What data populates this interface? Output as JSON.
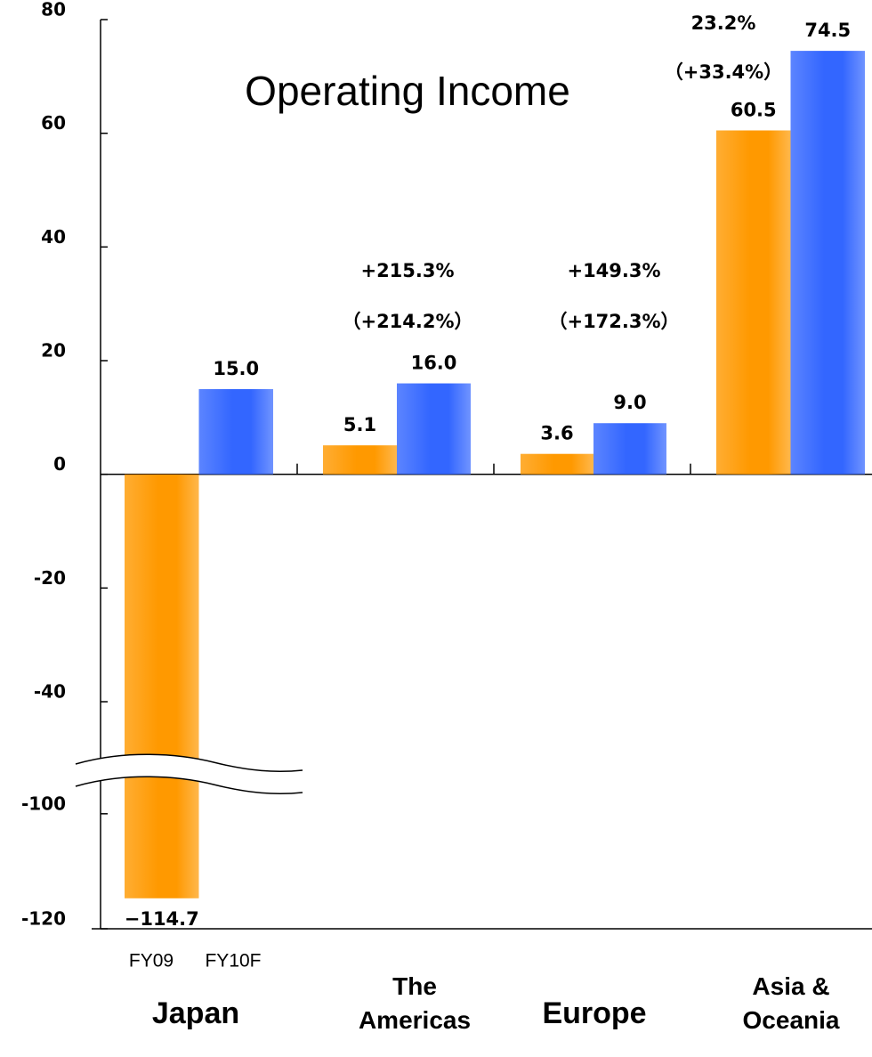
{
  "chart_data": {
    "type": "bar",
    "title": "Operating Income",
    "categories": [
      "Japan",
      "The Americas",
      "Europe",
      "Asia & Oceania"
    ],
    "series": [
      {
        "name": "FY09",
        "color": "#ff9900",
        "values": [
          -114.7,
          5.1,
          3.6,
          60.5
        ],
        "value_labels": [
          "−114.7",
          "5.1",
          "3.6",
          "60.5"
        ]
      },
      {
        "name": "FY10F",
        "color": "#3366ff",
        "values": [
          15.0,
          16.0,
          9.0,
          74.5
        ],
        "value_labels": [
          "15.0",
          "16.0",
          "9.0",
          "74.5"
        ]
      }
    ],
    "growth": [
      null,
      [
        "+215.3%",
        "（+214.2%）"
      ],
      [
        "+149.3%",
        "（+172.3%）"
      ],
      [
        "23.2%",
        "（+33.4%）"
      ]
    ],
    "ylim": [
      -120,
      80
    ],
    "axis_break": [
      -53,
      -96
    ],
    "yticks": [
      80,
      60,
      40,
      20,
      0,
      -20,
      -40,
      -100,
      -120
    ]
  }
}
